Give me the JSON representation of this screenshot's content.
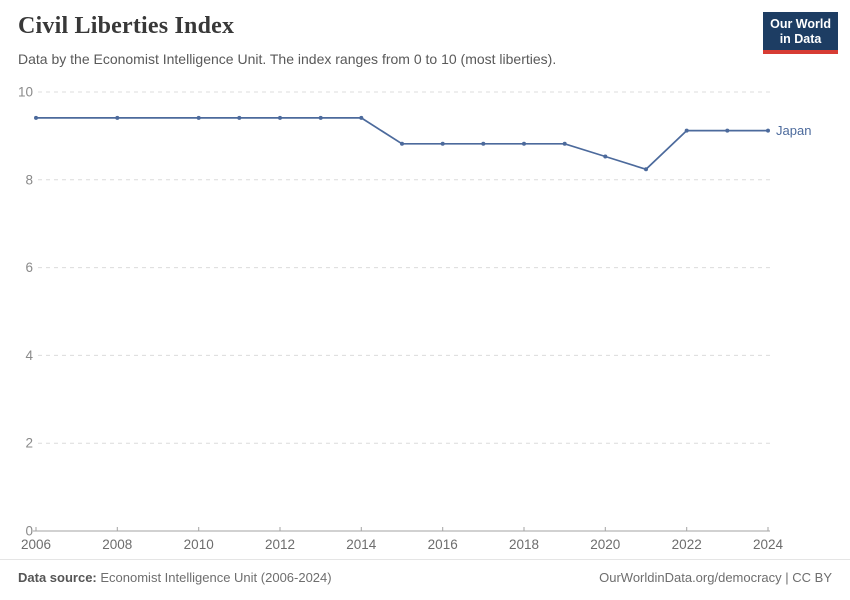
{
  "header": {
    "title": "Civil Liberties Index",
    "subtitle": "Data by the Economist Intelligence Unit. The index ranges from 0 to 10 (most liberties).",
    "logo": {
      "line1": "Our World",
      "line2": "in Data",
      "bg_color": "#1d3d63",
      "accent_color": "#d73c34"
    }
  },
  "chart_data": {
    "type": "line",
    "title": "Civil Liberties Index",
    "x": [
      2006,
      2008,
      2010,
      2011,
      2012,
      2013,
      2014,
      2015,
      2016,
      2017,
      2018,
      2019,
      2020,
      2021,
      2022,
      2023,
      2024
    ],
    "series": [
      {
        "name": "Japan",
        "color": "#4C6A9C",
        "values": [
          9.41,
          9.41,
          9.41,
          9.41,
          9.41,
          9.41,
          9.41,
          8.82,
          8.82,
          8.82,
          8.82,
          8.82,
          8.53,
          8.24,
          9.12,
          9.12,
          9.12
        ]
      }
    ],
    "xlim": [
      2006,
      2024
    ],
    "ylim": [
      0,
      10
    ],
    "yticks": [
      0,
      2,
      4,
      6,
      8,
      10
    ],
    "xticks": [
      2006,
      2008,
      2010,
      2012,
      2014,
      2016,
      2018,
      2020,
      2022,
      2024
    ],
    "grid": "horizontal-dashed",
    "legend_position": "end-of-line",
    "marker_radius": 2
  },
  "footer": {
    "datasource_label": "Data source:",
    "datasource_value": " Economist Intelligence Unit (2006-2024)",
    "credit": "OurWorldinData.org/democracy | CC BY"
  }
}
